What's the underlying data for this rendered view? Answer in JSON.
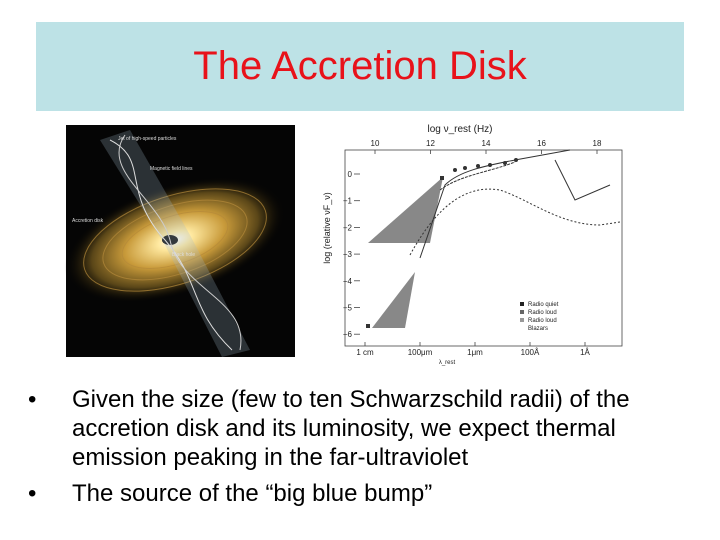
{
  "header": {
    "title": "The Accretion Disk"
  },
  "illustration": {
    "labels": [
      "Jet of high-speed particles",
      "Magnetic field lines",
      "Accretion disk",
      "Black hole"
    ]
  },
  "figure": {
    "top_axis_label": "log ν_rest (Hz)",
    "top_ticks": [
      "10",
      "12",
      "14",
      "16",
      "18"
    ],
    "bottom_axis_label": "λ_rest",
    "bottom_ticks": [
      "1 cm",
      "100μm",
      "1μm",
      "100Å",
      "1Å"
    ],
    "y_axis_label": "log (relative νF_ν)",
    "y_ticks": [
      "0",
      "−1",
      "−2",
      "−3",
      "−4",
      "−5",
      "−6"
    ],
    "legend": [
      "Radio quiet",
      "Radio loud",
      "Radio loud",
      "Blazars"
    ]
  },
  "bullets": [
    "Given the size (few to ten Schwarzschild radii) of the accretion disk and its luminosity, we expect thermal emission peaking in the far-ultraviolet",
    "The source of the “big blue bump”"
  ]
}
